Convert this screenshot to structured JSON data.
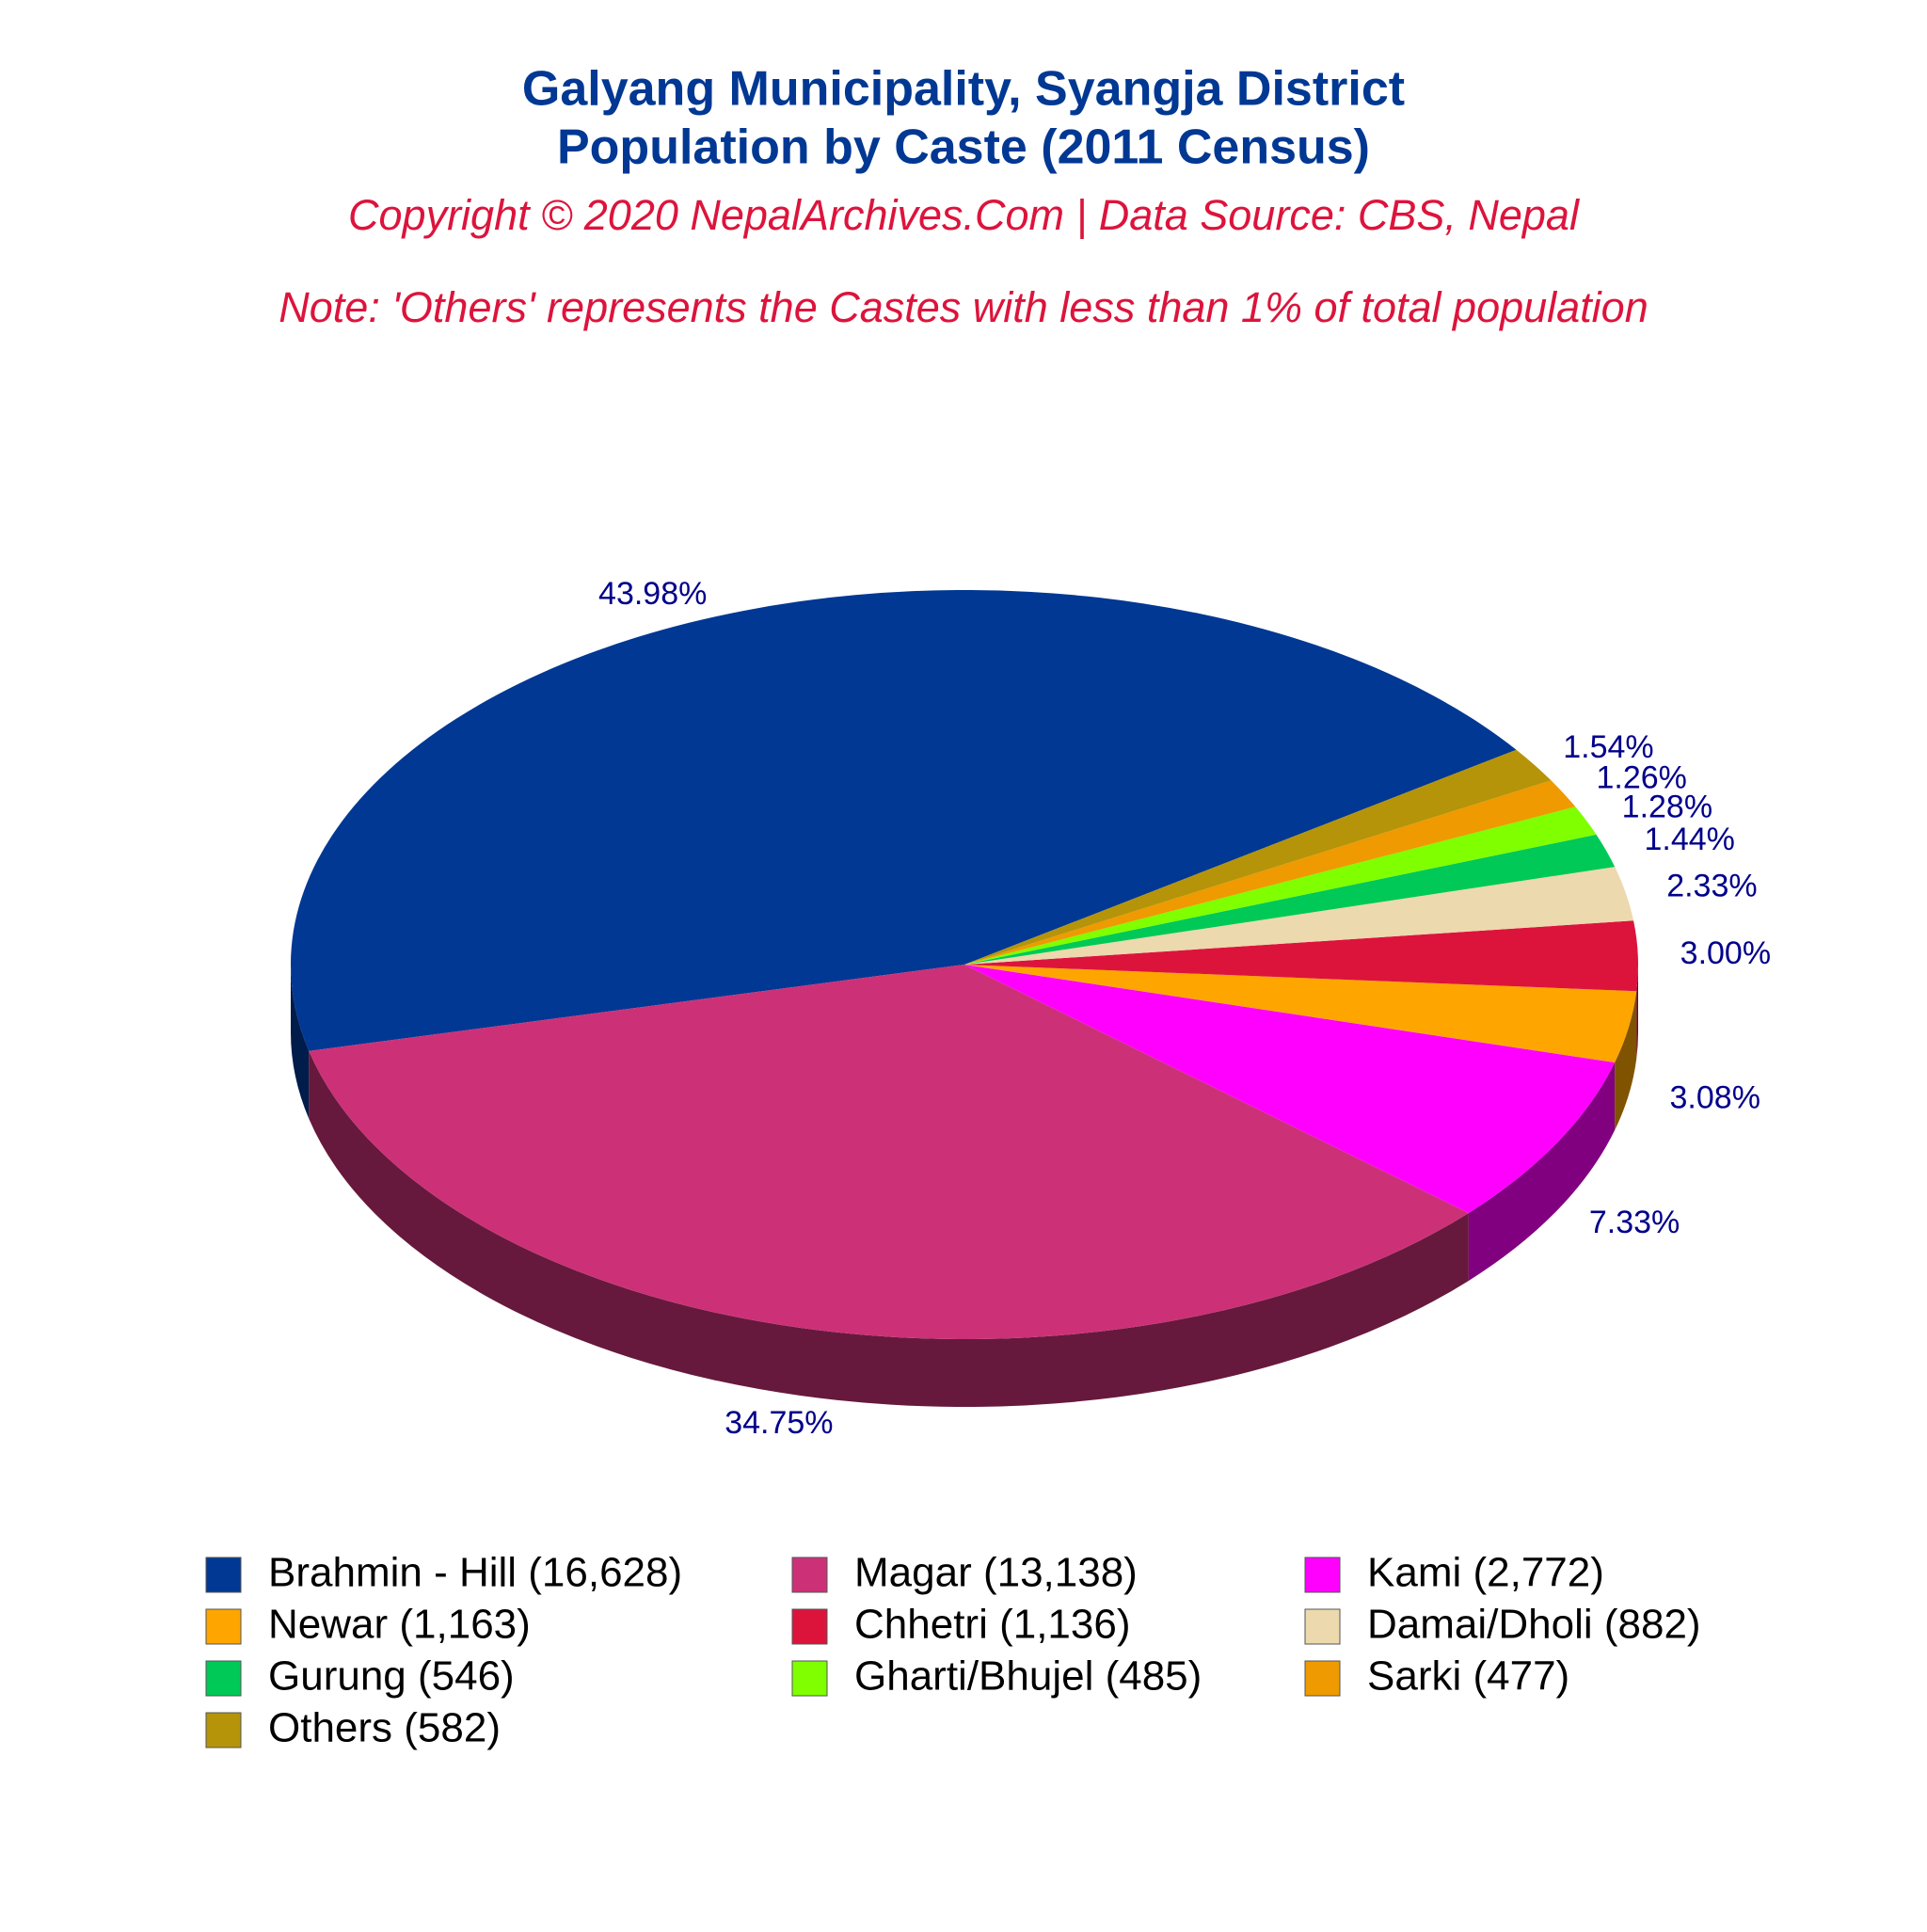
{
  "chart_data": {
    "type": "pie",
    "title": [
      "Galyang Municipality, Syangja District",
      "Population by Caste (2011 Census)"
    ],
    "subtitle": "Copyright © 2020 NepalArchives.Com | Data Source: CBS, Nepal",
    "note": "Note: 'Others' represents the Castes with less than 1% of total population",
    "categories": [
      "Brahmin - Hill (16,628)",
      "Magar (13,138)",
      "Kami (2,772)",
      "Newar (1,163)",
      "Chhetri (1,136)",
      "Damai/Dholi (882)",
      "Gurung (546)",
      "Gharti/Bhujel (485)",
      "Sarki (477)",
      "Others (582)"
    ],
    "values": [
      43.98,
      34.75,
      7.33,
      3.08,
      3.0,
      2.33,
      1.44,
      1.28,
      1.26,
      1.54
    ],
    "value_labels": [
      "43.98%",
      "34.75%",
      "7.33%",
      "3.08%",
      "3.00%",
      "2.33%",
      "1.44%",
      "1.28%",
      "1.26%",
      "1.54%"
    ],
    "colors": [
      "#003893",
      "#cc3177",
      "#ff00ff",
      "#ffa500",
      "#dc143c",
      "#ecd9ad",
      "#00c957",
      "#7fff00",
      "#ee9a00",
      "#b59409"
    ]
  }
}
